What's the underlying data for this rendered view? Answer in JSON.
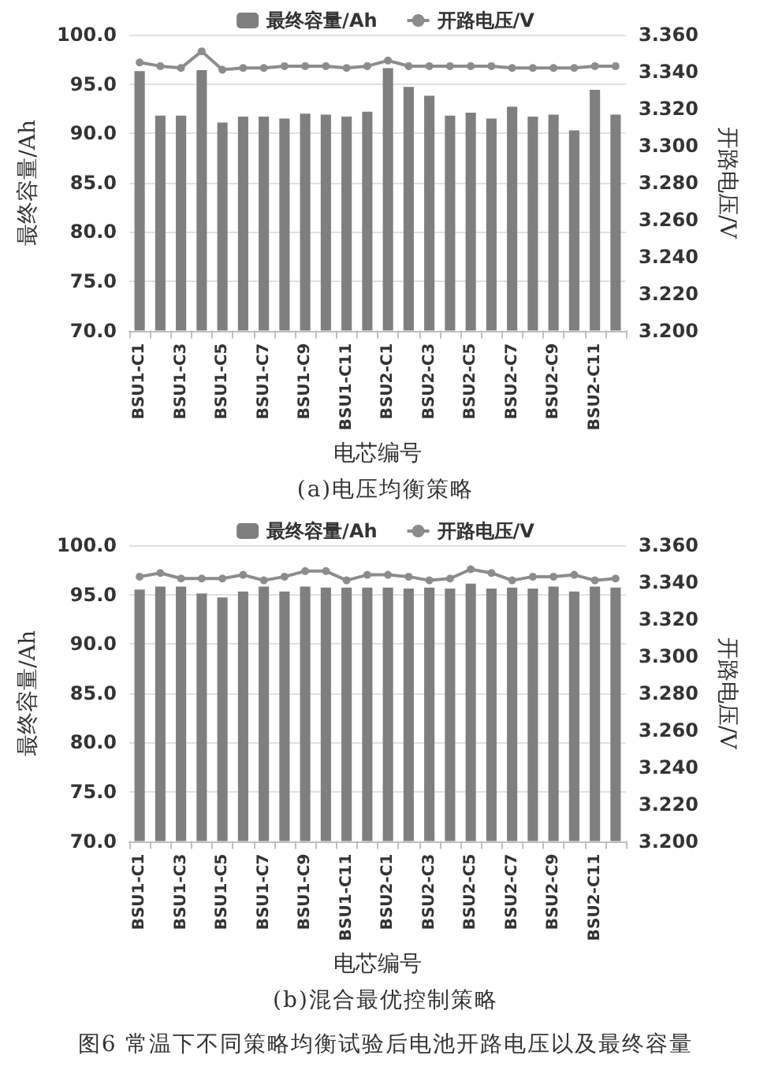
{
  "chart_data": [
    {
      "type": "bar",
      "xlabel": "电芯编号",
      "ylabel": "最终容量/Ah",
      "y2label": "开路电压/V",
      "annotations": [
        "(a)电压均衡策略"
      ],
      "categories": [
        "BSU1-C1",
        null,
        "BSU1-C3",
        null,
        "BSU1-C5",
        null,
        "BSU1-C7",
        null,
        "BSU1-C9",
        null,
        "BSU1-C11",
        null,
        "BSU2-C1",
        null,
        "BSU2-C3",
        null,
        "BSU2-C5",
        null,
        "BSU2-C7",
        null,
        "BSU2-C9",
        null,
        "BSU2-C11",
        null
      ],
      "series": [
        {
          "name": "最终容量/Ah",
          "color": "#7f7f7f",
          "values": [
            96.3,
            91.8,
            91.8,
            96.4,
            91.1,
            91.7,
            91.7,
            91.5,
            92.0,
            91.9,
            91.7,
            92.2,
            96.6,
            94.7,
            93.8,
            91.8,
            92.1,
            91.5,
            92.7,
            91.7,
            91.9,
            90.3,
            94.4,
            91.9
          ]
        },
        {
          "name": "开路电压/V",
          "type": "line",
          "axis": "y2",
          "color": "#8c8c8c",
          "marker": "circle",
          "values": [
            3.345,
            3.343,
            3.342,
            3.351,
            3.341,
            3.342,
            3.342,
            3.343,
            3.343,
            3.343,
            3.342,
            3.343,
            3.346,
            3.343,
            3.343,
            3.343,
            3.343,
            3.343,
            3.342,
            3.342,
            3.342,
            3.342,
            3.343,
            3.343
          ]
        }
      ],
      "ylim": [
        70,
        100
      ],
      "yticks": [
        {
          "value": 70,
          "label": "70.0"
        },
        {
          "value": 75,
          "label": "75.0"
        },
        {
          "value": 80,
          "label": "80.0"
        },
        {
          "value": 85,
          "label": "85.0"
        },
        {
          "value": 90,
          "label": "90.0"
        },
        {
          "value": 95,
          "label": "95.0"
        },
        {
          "value": 100,
          "label": "100.0"
        }
      ],
      "y2lim": [
        3.2,
        3.36
      ],
      "y2ticks": [
        {
          "value": 3.2,
          "label": "3.200"
        },
        {
          "value": 3.22,
          "label": "3.220"
        },
        {
          "value": 3.24,
          "label": "3.240"
        },
        {
          "value": 3.26,
          "label": "3.260"
        },
        {
          "value": 3.28,
          "label": "3.280"
        },
        {
          "value": 3.3,
          "label": "3.300"
        },
        {
          "value": 3.32,
          "label": "3.320"
        },
        {
          "value": 3.34,
          "label": "3.340"
        },
        {
          "value": 3.36,
          "label": "3.360"
        }
      ],
      "grid": "y",
      "legend": "top"
    },
    {
      "type": "bar",
      "xlabel": "电芯编号",
      "ylabel": "最终容量/Ah",
      "y2label": "开路电压/V",
      "annotations": [
        "(b)混合最优控制策略",
        "图6  常温下不同策略均衡试验后电池开路电压以及最终容量"
      ],
      "categories": [
        "BSU1-C1",
        null,
        "BSU1-C3",
        null,
        "BSU1-C5",
        null,
        "BSU1-C7",
        null,
        "BSU1-C9",
        null,
        "BSU1-C11",
        null,
        "BSU2-C1",
        null,
        "BSU2-C3",
        null,
        "BSU2-C5",
        null,
        "BSU2-C7",
        null,
        "BSU2-C9",
        null,
        "BSU2-C11",
        null
      ],
      "series": [
        {
          "name": "最终容量/Ah",
          "color": "#7f7f7f",
          "values": [
            95.5,
            95.8,
            95.8,
            95.1,
            94.7,
            95.3,
            95.8,
            95.3,
            95.8,
            95.7,
            95.7,
            95.7,
            95.7,
            95.6,
            95.7,
            95.6,
            96.1,
            95.6,
            95.7,
            95.6,
            95.8,
            95.3,
            95.8,
            95.7
          ]
        },
        {
          "name": "开路电压/V",
          "type": "line",
          "axis": "y2",
          "color": "#8c8c8c",
          "marker": "circle",
          "values": [
            3.343,
            3.345,
            3.342,
            3.342,
            3.342,
            3.344,
            3.341,
            3.343,
            3.346,
            3.346,
            3.341,
            3.344,
            3.344,
            3.343,
            3.341,
            3.342,
            3.347,
            3.345,
            3.341,
            3.343,
            3.343,
            3.344,
            3.341,
            3.342
          ]
        }
      ],
      "ylim": [
        70,
        100
      ],
      "yticks": [
        {
          "value": 70,
          "label": "70.0"
        },
        {
          "value": 75,
          "label": "75.0"
        },
        {
          "value": 80,
          "label": "80.0"
        },
        {
          "value": 85,
          "label": "85.0"
        },
        {
          "value": 90,
          "label": "90.0"
        },
        {
          "value": 95,
          "label": "95.0"
        },
        {
          "value": 100,
          "label": "100.0"
        }
      ],
      "y2lim": [
        3.2,
        3.36
      ],
      "y2ticks": [
        {
          "value": 3.2,
          "label": "3.200"
        },
        {
          "value": 3.22,
          "label": "3.220"
        },
        {
          "value": 3.24,
          "label": "3.240"
        },
        {
          "value": 3.26,
          "label": "3.260"
        },
        {
          "value": 3.28,
          "label": "3.280"
        },
        {
          "value": 3.3,
          "label": "3.300"
        },
        {
          "value": 3.32,
          "label": "3.320"
        },
        {
          "value": 3.34,
          "label": "3.340"
        },
        {
          "value": 3.36,
          "label": "3.360"
        }
      ],
      "grid": "y",
      "legend": "top"
    }
  ]
}
